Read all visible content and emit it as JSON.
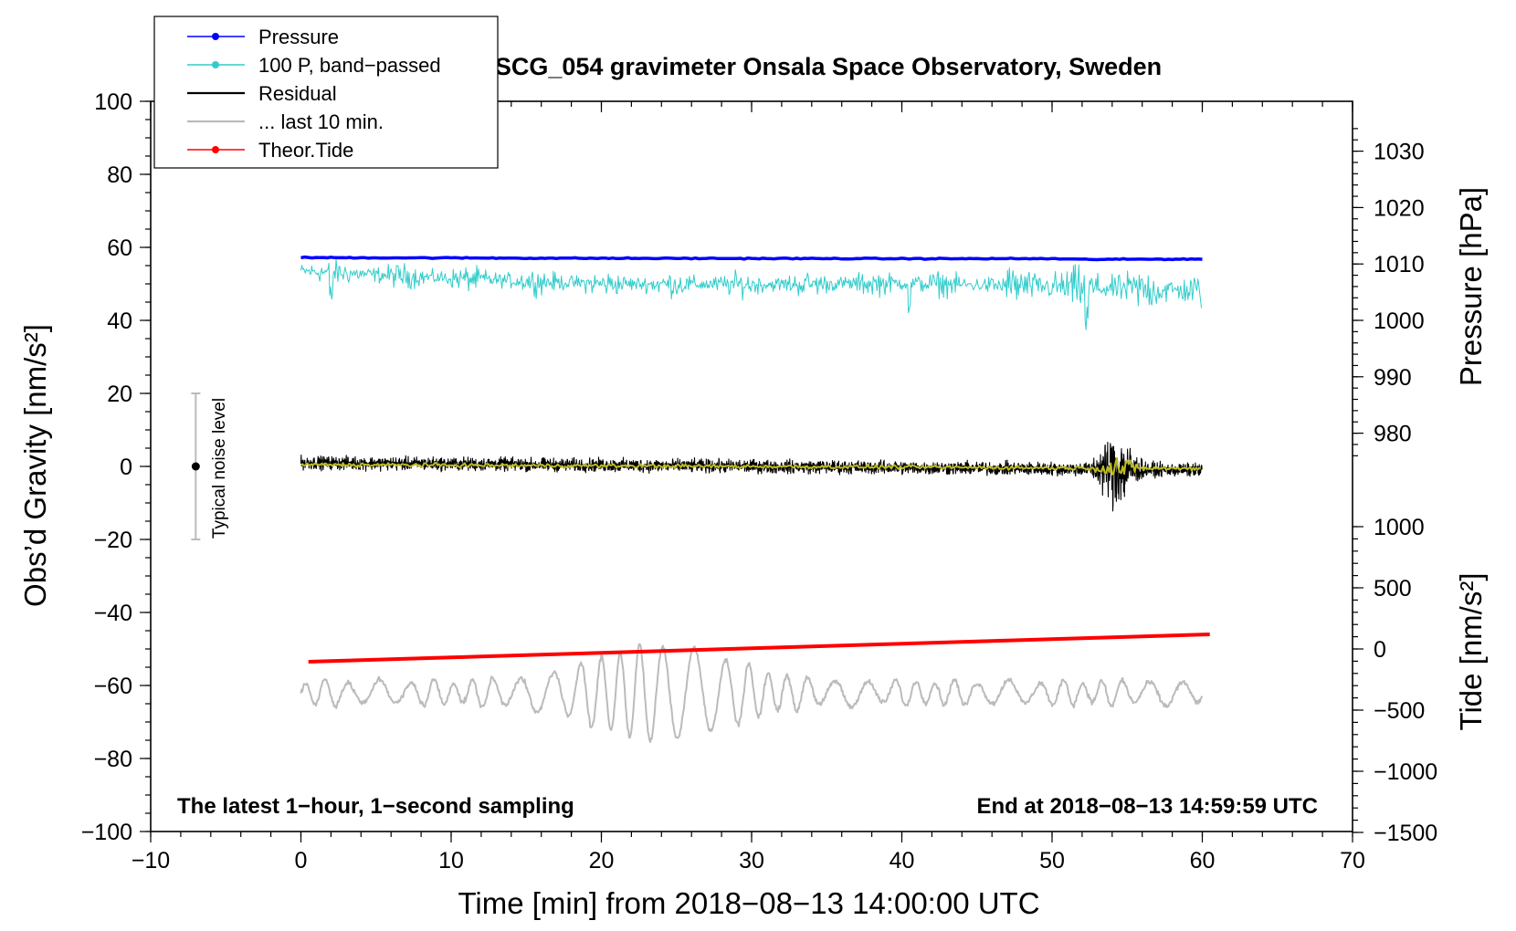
{
  "chart_data": {
    "type": "line",
    "title": "SCG_054 gravimeter Onsala Space Observatory, Sweden",
    "xlabel": "Time [min] from 2018−08−13 14:00:00 UTC",
    "ylabel_left": "Obs’d Gravity [nm/s²]",
    "ylabel_right_pressure": "Pressure [hPa]",
    "ylabel_right_tide": "Tide [nm/s²]",
    "xlim": [
      -10,
      70
    ],
    "ylim_left": [
      -100,
      100
    ],
    "x_ticks": [
      "−10",
      "0",
      "10",
      "20",
      "30",
      "40",
      "50",
      "60",
      "70"
    ],
    "y_left_ticks": [
      "100",
      "80",
      "60",
      "40",
      "20",
      "0",
      "−20",
      "−40",
      "−60",
      "−80",
      "−100"
    ],
    "pressure_ticks": [
      "1030",
      "1020",
      "1010",
      "1000",
      "990",
      "980"
    ],
    "tide_ticks": [
      "1000",
      "500",
      "0",
      "−500",
      "−1000",
      "−1500"
    ],
    "note_left": "The latest 1−hour, 1−second sampling",
    "note_right": "End at 2018−08−13 14:59:59 UTC",
    "noise_label": "Typical noise level",
    "noise_bar": {
      "x": -7,
      "center": 0,
      "half_range": 20
    },
    "legend": [
      {
        "label": "Pressure",
        "color": "#0000ff",
        "marker": true
      },
      {
        "label": "100 P, band−passed",
        "color": "#33cccc",
        "marker": true
      },
      {
        "label": "Residual",
        "color": "#000000",
        "marker": false
      },
      {
        "label": "... last 10 min.",
        "color": "#bbbbbb",
        "marker": false
      },
      {
        "label": "Theor.Tide",
        "color": "#ff0000",
        "marker": true
      }
    ],
    "series": [
      {
        "name": "Pressure",
        "color": "#0000ff",
        "axis": "left",
        "x": [
          0,
          20,
          40,
          50,
          52,
          60
        ],
        "y": [
          57.2,
          57.0,
          56.9,
          56.9,
          56.7,
          56.8
        ]
      },
      {
        "name": "100 P, band−passed",
        "color": "#33cccc",
        "axis": "left",
        "x": [
          0,
          10,
          20,
          30,
          40,
          50,
          60
        ],
        "y": [
          53.5,
          51.5,
          50.0,
          49.8,
          50.2,
          49.2,
          48.0
        ]
      },
      {
        "name": "Residual",
        "color": "#000000",
        "axis": "left",
        "x": [
          0,
          30,
          60
        ],
        "y": [
          1.0,
          0.0,
          -1.0
        ]
      },
      {
        "name": "Residual (smoothed)",
        "color": "#bbbb22",
        "axis": "left",
        "x": [
          0,
          30,
          60
        ],
        "y": [
          0.5,
          0.0,
          -0.6
        ]
      },
      {
        "name": "... last 10 min.",
        "color": "#bbbbbb",
        "axis": "left",
        "x": [
          0,
          60
        ],
        "y": [
          -62,
          -62
        ]
      },
      {
        "name": "Theor.Tide",
        "color": "#ff0000",
        "axis": "left",
        "x": [
          0.5,
          60.5
        ],
        "y": [
          -53.5,
          -46.0
        ]
      }
    ]
  }
}
